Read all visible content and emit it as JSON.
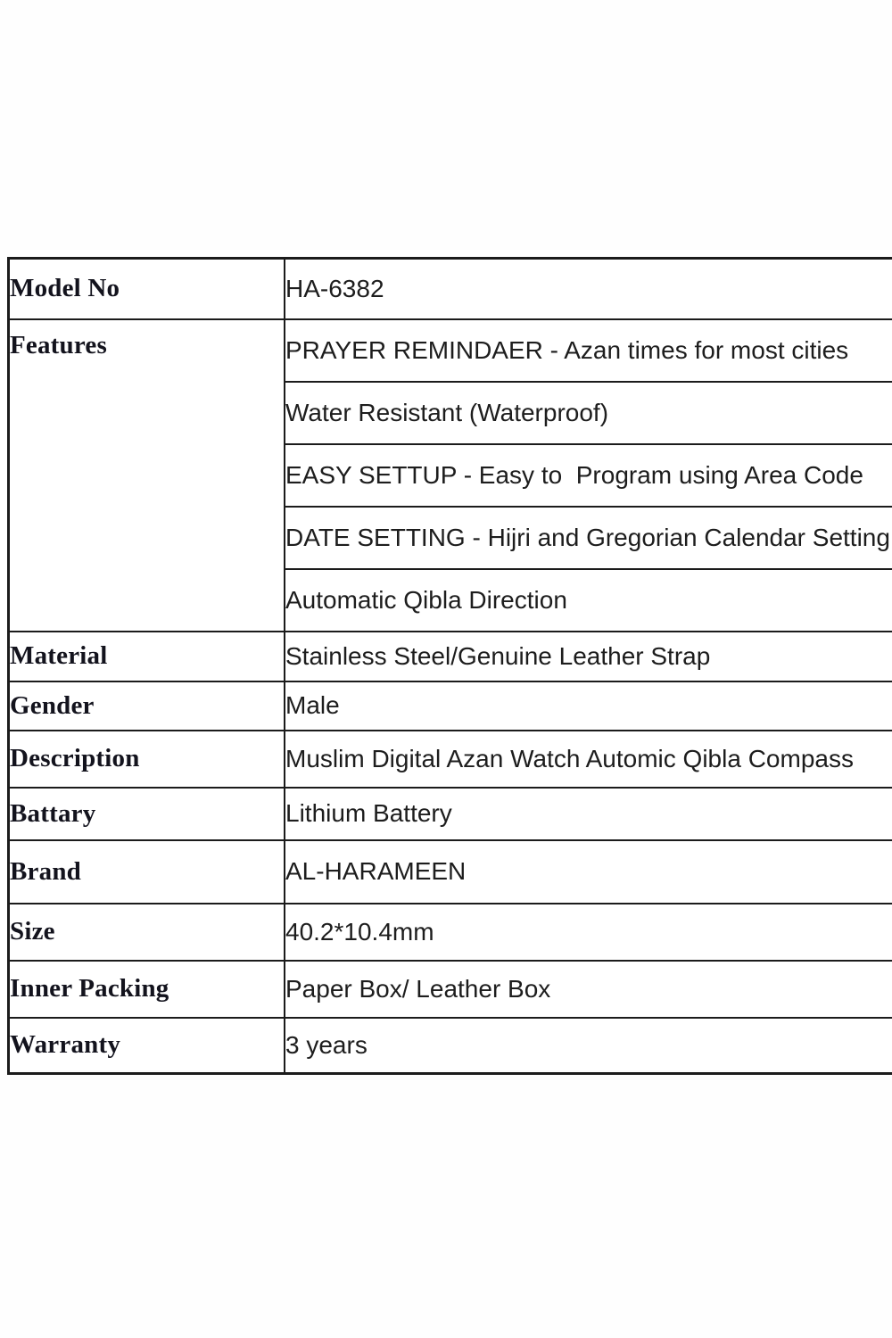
{
  "colors": {
    "background": "#ffffff",
    "grid_border": "#1b1b1b",
    "label_text": "#13131d",
    "value_text": "#1d1d1d"
  },
  "spec_table": {
    "rows": {
      "model_no": {
        "label": "Model No",
        "value": "HA-6382"
      },
      "features": {
        "label": "Features",
        "items": [
          "PRAYER REMINDAER - Azan times for most cities",
          "Water Resistant (Waterproof)",
          "EASY SETTUP - Easy to  Program using Area Code",
          "DATE SETTING - Hijri and Gregorian Calendar Setting",
          "Automatic Qibla Direction"
        ]
      },
      "material": {
        "label": "Material",
        "value": "Stainless Steel/Genuine Leather Strap"
      },
      "gender": {
        "label": "Gender",
        "value": "Male"
      },
      "description": {
        "label": "Description",
        "value": "Muslim Digital Azan Watch Automic Qibla Compass"
      },
      "battery": {
        "label": "Battary",
        "value": "Lithium Battery"
      },
      "brand": {
        "label": "Brand",
        "value": "AL-HARAMEEN"
      },
      "size": {
        "label": "Size",
        "value": "40.2*10.4mm"
      },
      "inner_packing": {
        "label": "Inner Packing",
        "value": "Paper Box/ Leather Box"
      },
      "warranty": {
        "label": "Warranty",
        "value": "3 years"
      }
    }
  }
}
